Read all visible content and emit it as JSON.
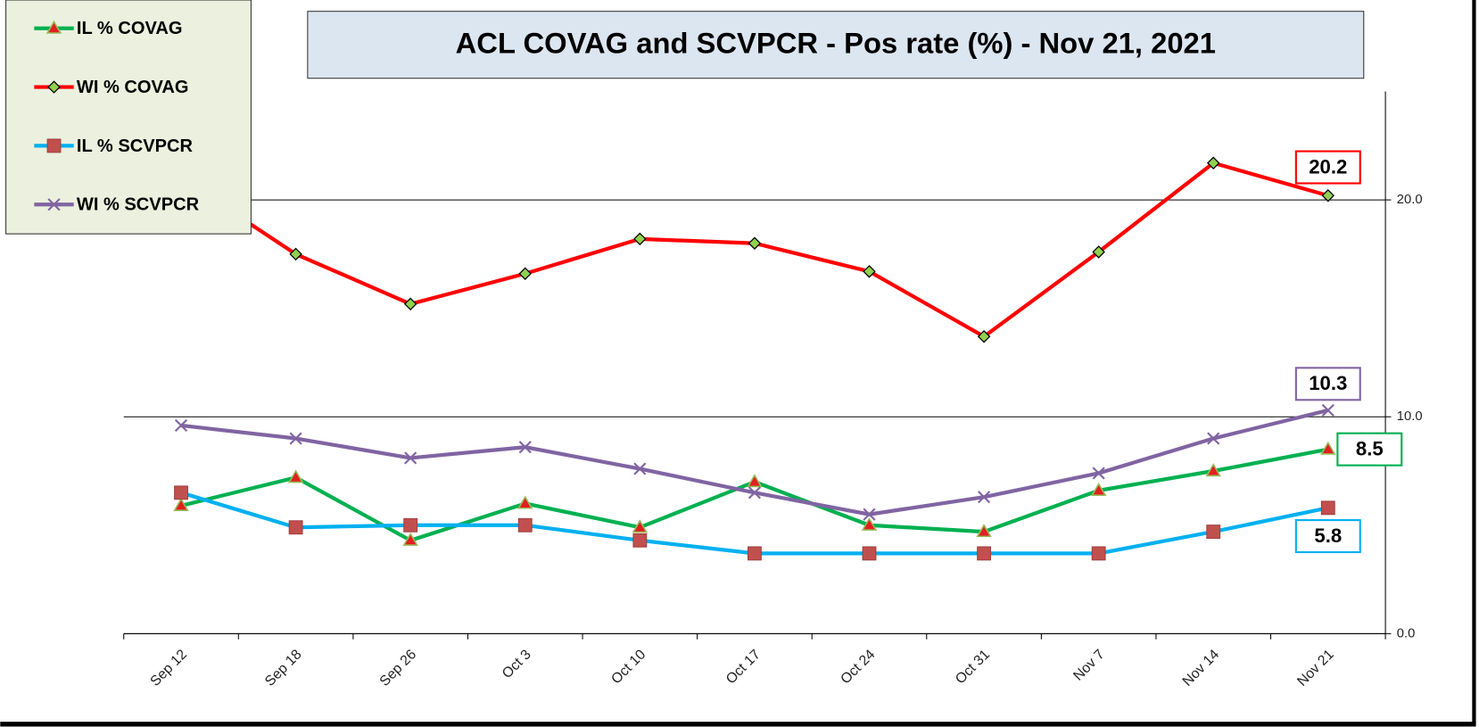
{
  "chart_data": {
    "type": "line",
    "title": "ACL COVAG and SCVPCR -  Pos rate (%) - Nov 21, 2021",
    "categories": [
      "Sep 12",
      "Sep 18",
      "Sep 26",
      "Oct 3",
      "Oct 10",
      "Oct 17",
      "Oct 24",
      "Oct 31",
      "Nov 7",
      "Nov 14",
      "Nov 21"
    ],
    "series": [
      {
        "name": "IL % COVAG",
        "color": "#00b050",
        "marker": "triangle",
        "marker_color": "#e02020",
        "values": [
          5.9,
          7.2,
          4.3,
          6.0,
          4.9,
          7.0,
          5.0,
          4.7,
          6.6,
          7.5,
          8.5
        ]
      },
      {
        "name": "WI % COVAG",
        "color": "#ff0000",
        "marker": "diamond",
        "marker_color": "#92d050",
        "values": [
          21.0,
          17.5,
          15.2,
          16.6,
          18.2,
          18.0,
          16.7,
          13.7,
          17.6,
          21.7,
          20.2
        ]
      },
      {
        "name": "IL % SCVPCR",
        "color": "#00b0f0",
        "marker": "square",
        "marker_color": "#c0504d",
        "values": [
          6.5,
          4.9,
          5.0,
          5.0,
          4.3,
          3.7,
          3.7,
          3.7,
          3.7,
          4.7,
          5.8
        ]
      },
      {
        "name": "WI % SCVPCR",
        "color": "#8064a2",
        "marker": "x",
        "marker_color": "#8064a2",
        "values": [
          9.6,
          9.0,
          8.1,
          8.6,
          7.6,
          6.5,
          5.5,
          6.3,
          7.4,
          9.0,
          10.3
        ]
      }
    ],
    "ylim": [
      0,
      25
    ],
    "yticks": [
      {
        "value": 0,
        "label": "0.0"
      },
      {
        "value": 10,
        "label": "10.0"
      },
      {
        "value": 20,
        "label": "20.0"
      }
    ],
    "grid": true,
    "legend": "top-left"
  }
}
